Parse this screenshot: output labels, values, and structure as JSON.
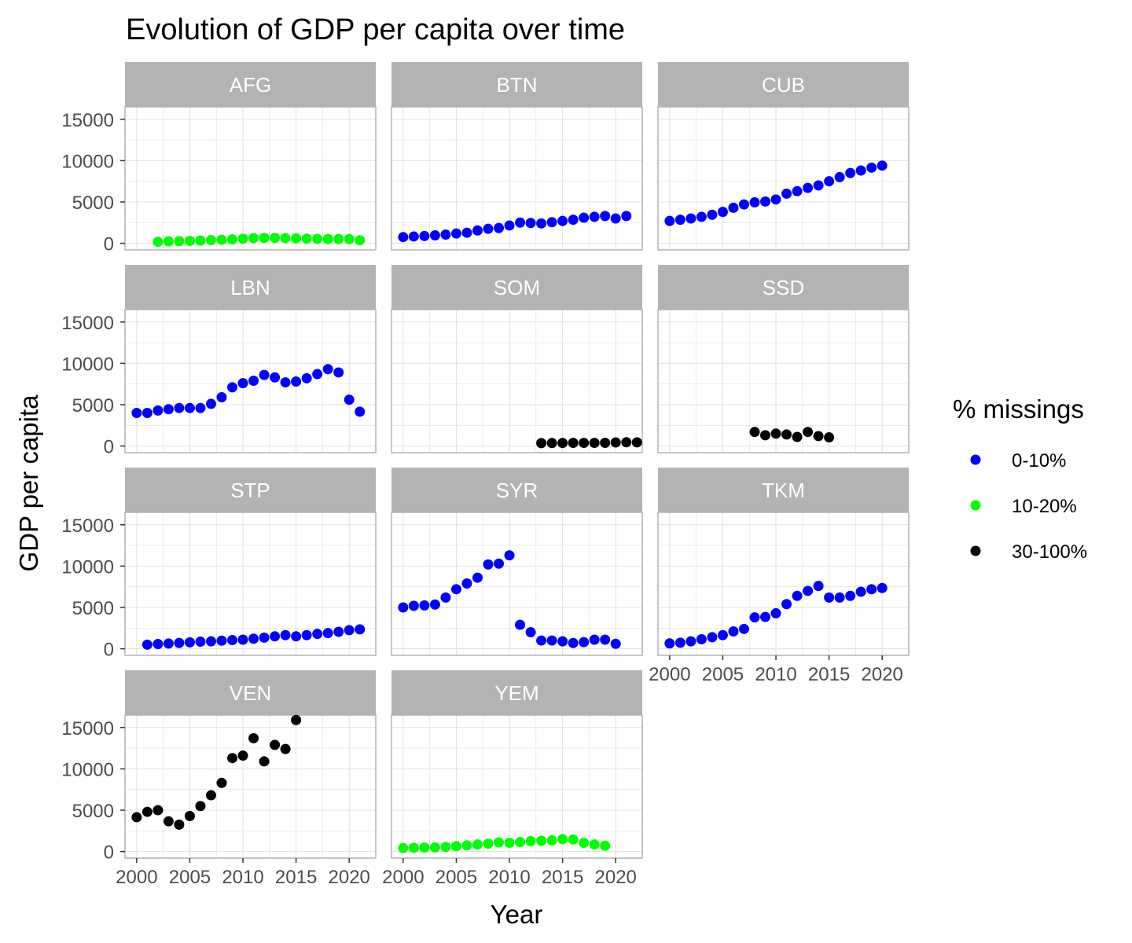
{
  "chart_data": {
    "type": "scatter",
    "title": "Evolution of GDP per capita over time",
    "xlabel": "Year",
    "ylabel": "GDP per capita",
    "xlim": [
      1998.9,
      2022.5
    ],
    "ylim": [
      -800,
      16500
    ],
    "x_ticks": [
      2000,
      2005,
      2010,
      2015,
      2020
    ],
    "y_ticks": [
      0,
      5000,
      10000,
      15000
    ],
    "grid": true,
    "legend": {
      "title": "% missings",
      "position": "right",
      "entries": [
        {
          "label": "0-10%",
          "color": "#0000ff"
        },
        {
          "label": "10-20%",
          "color": "#00ff00"
        },
        {
          "label": "30-100%",
          "color": "#000000"
        }
      ]
    },
    "panels": [
      {
        "name": "AFG",
        "category": "10-20%",
        "x": [
          2002,
          2003,
          2004,
          2005,
          2006,
          2007,
          2008,
          2009,
          2010,
          2011,
          2012,
          2013,
          2014,
          2015,
          2016,
          2017,
          2018,
          2019,
          2020,
          2021
        ],
        "y": [
          180,
          230,
          260,
          290,
          330,
          390,
          420,
          470,
          560,
          620,
          650,
          650,
          630,
          600,
          560,
          530,
          520,
          510,
          510,
          370
        ]
      },
      {
        "name": "BTN",
        "category": "0-10%",
        "x": [
          2000,
          2001,
          2002,
          2003,
          2004,
          2005,
          2006,
          2007,
          2008,
          2009,
          2010,
          2011,
          2012,
          2013,
          2014,
          2015,
          2016,
          2017,
          2018,
          2019,
          2020,
          2021
        ],
        "y": [
          750,
          820,
          880,
          960,
          1050,
          1180,
          1280,
          1550,
          1750,
          1850,
          2150,
          2500,
          2450,
          2400,
          2550,
          2700,
          2850,
          3100,
          3200,
          3300,
          3000,
          3300
        ]
      },
      {
        "name": "CUB",
        "category": "0-10%",
        "x": [
          2000,
          2001,
          2002,
          2003,
          2004,
          2005,
          2006,
          2007,
          2008,
          2009,
          2010,
          2011,
          2012,
          2013,
          2014,
          2015,
          2016,
          2017,
          2018,
          2019,
          2020
        ],
        "y": [
          2700,
          2850,
          3000,
          3200,
          3450,
          3800,
          4300,
          4700,
          4950,
          5050,
          5300,
          6000,
          6300,
          6700,
          7000,
          7500,
          8000,
          8500,
          8800,
          9150,
          9400
        ]
      },
      {
        "name": "LBN",
        "category": "0-10%",
        "x": [
          2000,
          2001,
          2002,
          2003,
          2004,
          2005,
          2006,
          2007,
          2008,
          2009,
          2010,
          2011,
          2012,
          2013,
          2014,
          2015,
          2016,
          2017,
          2018,
          2019,
          2020,
          2021
        ],
        "y": [
          4000,
          4000,
          4300,
          4450,
          4600,
          4600,
          4600,
          5100,
          5900,
          7100,
          7600,
          7900,
          8600,
          8300,
          7700,
          7800,
          8200,
          8700,
          9300,
          8900,
          5600,
          4150
        ]
      },
      {
        "name": "SOM",
        "category": "30-100%",
        "x": [
          2013,
          2014,
          2015,
          2016,
          2017,
          2018,
          2019,
          2020,
          2021,
          2022
        ],
        "y": [
          350,
          360,
          370,
          380,
          380,
          380,
          390,
          430,
          460,
          450
        ]
      },
      {
        "name": "SSD",
        "category": "30-100%",
        "x": [
          2008,
          2009,
          2010,
          2011,
          2012,
          2013,
          2014,
          2015
        ],
        "y": [
          1700,
          1300,
          1500,
          1400,
          1100,
          1700,
          1200,
          1050
        ]
      },
      {
        "name": "STP",
        "category": "0-10%",
        "x": [
          2001,
          2002,
          2003,
          2004,
          2005,
          2006,
          2007,
          2008,
          2009,
          2010,
          2011,
          2012,
          2013,
          2014,
          2015,
          2016,
          2017,
          2018,
          2019,
          2020,
          2021
        ],
        "y": [
          500,
          580,
          640,
          710,
          780,
          860,
          900,
          980,
          1050,
          1100,
          1220,
          1350,
          1500,
          1650,
          1500,
          1650,
          1800,
          1900,
          2050,
          2250,
          2350
        ]
      },
      {
        "name": "SYR",
        "category": "0-10%",
        "x": [
          2000,
          2001,
          2002,
          2003,
          2004,
          2005,
          2006,
          2007,
          2008,
          2009,
          2010,
          2011,
          2012,
          2013,
          2014,
          2015,
          2016,
          2017,
          2018,
          2019,
          2020
        ],
        "y": [
          5000,
          5200,
          5250,
          5350,
          6200,
          7200,
          7900,
          8600,
          10200,
          10300,
          11300,
          2900,
          2000,
          1000,
          1000,
          900,
          700,
          800,
          1100,
          1100,
          600
        ]
      },
      {
        "name": "TKM",
        "category": "0-10%",
        "x": [
          2000,
          2001,
          2002,
          2003,
          2004,
          2005,
          2006,
          2007,
          2008,
          2009,
          2010,
          2011,
          2012,
          2013,
          2014,
          2015,
          2016,
          2017,
          2018,
          2019,
          2020
        ],
        "y": [
          650,
          730,
          900,
          1150,
          1400,
          1650,
          2100,
          2400,
          3800,
          3850,
          4300,
          5400,
          6400,
          7000,
          7600,
          6200,
          6200,
          6400,
          6900,
          7200,
          7350
        ]
      },
      {
        "name": "VEN",
        "category": "30-100%",
        "x": [
          2000,
          2001,
          2002,
          2003,
          2004,
          2005,
          2006,
          2007,
          2008,
          2009,
          2010,
          2011,
          2012,
          2013,
          2014,
          2015
        ],
        "y": [
          4150,
          4800,
          5000,
          3650,
          3250,
          4300,
          5500,
          6800,
          8300,
          11300,
          11600,
          13700,
          10900,
          12900,
          12400,
          15900
        ]
      },
      {
        "name": "YEM",
        "category": "10-20%",
        "x": [
          2000,
          2001,
          2002,
          2003,
          2004,
          2005,
          2006,
          2007,
          2008,
          2009,
          2010,
          2011,
          2012,
          2013,
          2014,
          2015,
          2016,
          2017,
          2018,
          2019
        ],
        "y": [
          420,
          450,
          480,
          500,
          560,
          650,
          750,
          850,
          950,
          1100,
          1050,
          1150,
          1250,
          1300,
          1350,
          1500,
          1450,
          1050,
          850,
          700
        ]
      }
    ]
  }
}
